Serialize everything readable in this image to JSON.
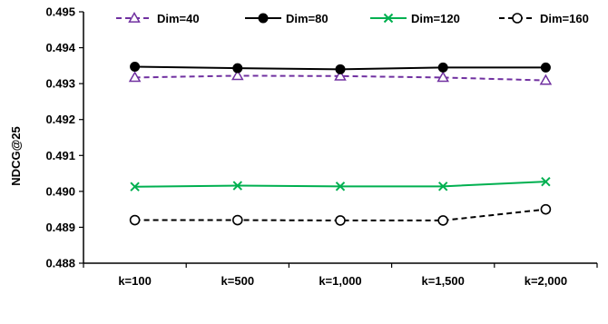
{
  "chart_data": {
    "type": "line",
    "title": "",
    "xlabel": "",
    "ylabel": "NDCG@25",
    "categories": [
      "k=100",
      "k=500",
      "k=1,000",
      "k=1,500",
      "k=2,000"
    ],
    "ylim": [
      0.488,
      0.495
    ],
    "yticks": [
      "0.488",
      "0.489",
      "0.490",
      "0.491",
      "0.492",
      "0.493",
      "0.494",
      "0.495"
    ],
    "grid": false,
    "legend_position": "top",
    "series": [
      {
        "name": "Dim=40",
        "values": [
          0.49317,
          0.49322,
          0.49321,
          0.49317,
          0.49309
        ],
        "color": "#7030A0",
        "dash": "dashed",
        "marker": "triangle-open"
      },
      {
        "name": "Dim=80",
        "values": [
          0.49347,
          0.49343,
          0.4934,
          0.49345,
          0.49345
        ],
        "color": "#000000",
        "dash": "solid",
        "marker": "circle-filled"
      },
      {
        "name": "Dim=120",
        "values": [
          0.49013,
          0.49016,
          0.49014,
          0.49014,
          0.49027
        ],
        "color": "#00B050",
        "dash": "solid",
        "marker": "x"
      },
      {
        "name": "Dim=160",
        "values": [
          0.4892,
          0.4892,
          0.48919,
          0.48919,
          0.4895
        ],
        "color": "#000000",
        "dash": "dashed",
        "marker": "circle-open"
      }
    ]
  }
}
